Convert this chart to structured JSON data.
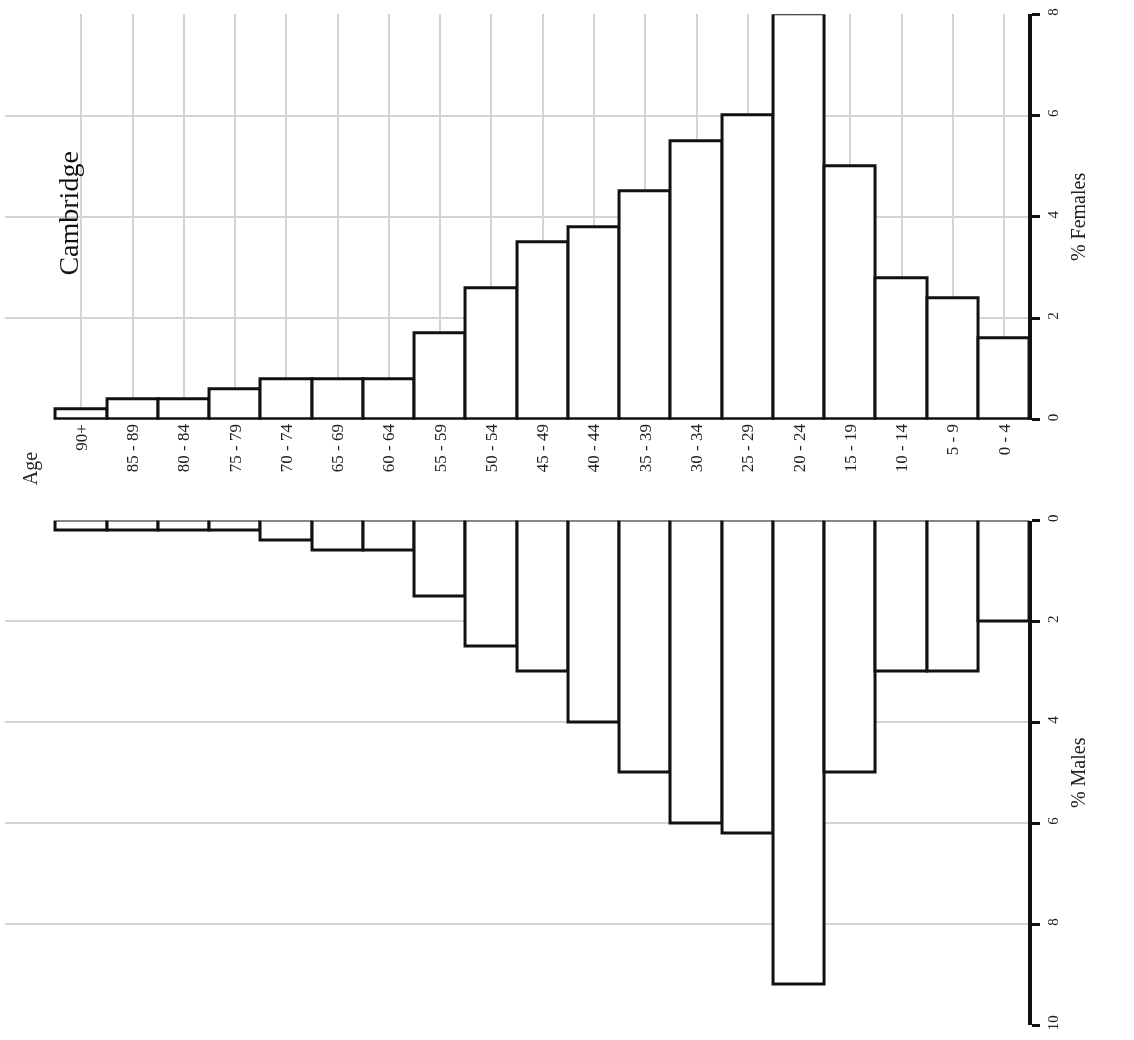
{
  "chart_data": [
    {
      "type": "bar",
      "title": "Cambridge",
      "annotations": [
        "Age"
      ],
      "ylabel": "% Females",
      "categories": [
        "90+",
        "85 - 89",
        "80 - 84",
        "75 - 79",
        "70 - 74",
        "65 - 69",
        "60 - 64",
        "55 - 59",
        "50 - 54",
        "45 - 49",
        "40 - 44",
        "35 - 39",
        "30 - 34",
        "25 - 29",
        "20 - 24",
        "15 - 19",
        "10 - 14",
        "5 - 9",
        "0 - 4"
      ],
      "values": [
        0.2,
        0.4,
        0.4,
        0.6,
        0.8,
        0.8,
        0.8,
        1.7,
        2.6,
        3.5,
        3.8,
        4.5,
        5.5,
        6.0,
        8.0,
        5.0,
        2.8,
        2.4,
        1.6
      ],
      "color": "#ffffff",
      "ylim": [
        0,
        8
      ],
      "yticks": [
        0,
        2,
        4,
        6,
        8
      ],
      "grid": true
    },
    {
      "type": "bar",
      "ylabel": "% Males",
      "categories": [
        "90+",
        "85 - 89",
        "80 - 84",
        "75 - 79",
        "70 - 74",
        "65 - 69",
        "60 - 64",
        "55 - 59",
        "50 - 54",
        "45 - 49",
        "40 - 44",
        "35 - 39",
        "30 - 34",
        "25 - 29",
        "20 - 24",
        "15 - 19",
        "10 - 14",
        "5 - 9",
        "0 - 4"
      ],
      "values": [
        0.2,
        0.2,
        0.2,
        0.2,
        0.4,
        0.6,
        0.6,
        1.5,
        2.5,
        3.0,
        4.0,
        5.0,
        6.0,
        6.2,
        9.2,
        5.0,
        3.0,
        3.0,
        2.0
      ],
      "color": "#ffffff",
      "ylim": [
        10,
        0
      ],
      "yticks": [
        0,
        2,
        4,
        6,
        8,
        10
      ],
      "grid": true,
      "tick_labels": "y"
    }
  ]
}
